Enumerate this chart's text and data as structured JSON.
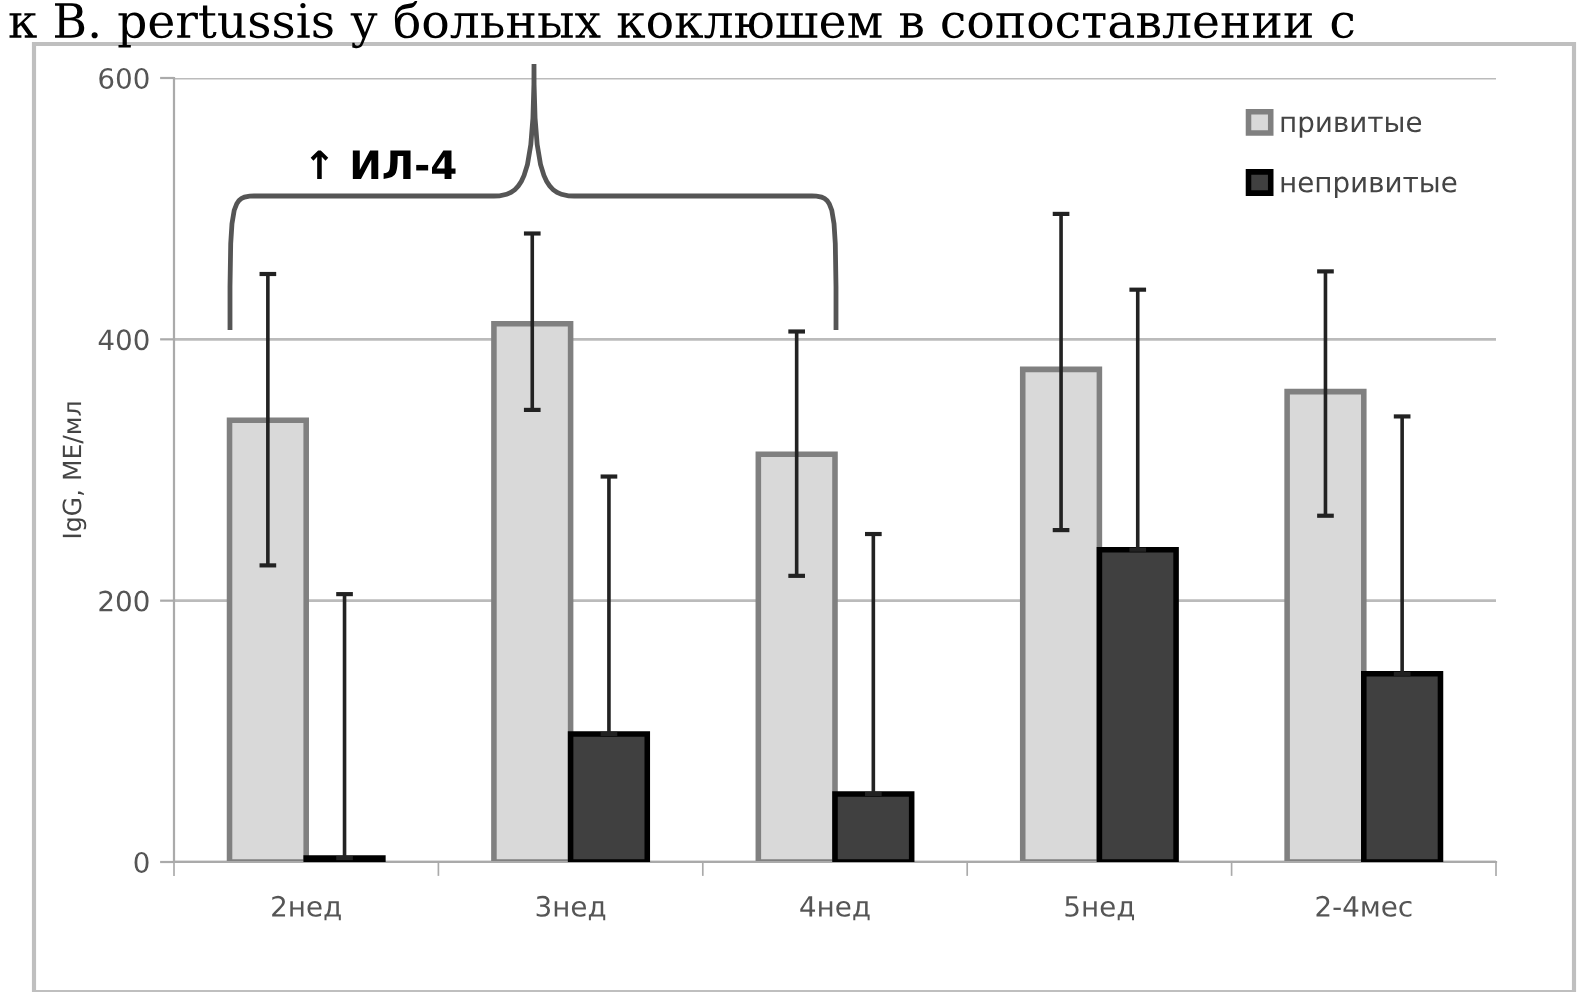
{
  "chart_data": {
    "type": "bar",
    "title": "к B. pertussis у больных коклюшем в сопоставлении с",
    "ylabel": "IgG, МЕ/мл",
    "categories": [
      "2нед",
      "3нед",
      "4нед",
      "5нед",
      "2-4мес"
    ],
    "series": [
      {
        "name": "привитые",
        "color": "#d9d9d9",
        "values": [
          338,
          412,
          312,
          377,
          360
        ],
        "errors": [
          [
            227,
            450
          ],
          [
            346,
            481
          ],
          [
            219,
            406
          ],
          [
            254,
            496
          ],
          [
            265,
            452
          ]
        ]
      },
      {
        "name": "непривитые",
        "color": "#404040",
        "values": [
          3,
          98,
          52,
          239,
          144
        ],
        "errors": [
          [
            3,
            205
          ],
          [
            98,
            295
          ],
          [
            52,
            251
          ],
          [
            239,
            438
          ],
          [
            144,
            341
          ]
        ]
      }
    ],
    "ylim": [
      0,
      600
    ],
    "yticks": [
      0,
      200,
      400,
      600
    ],
    "grid": "y",
    "legend": "top right",
    "annotations": [
      "↑ ИЛ-4"
    ]
  }
}
